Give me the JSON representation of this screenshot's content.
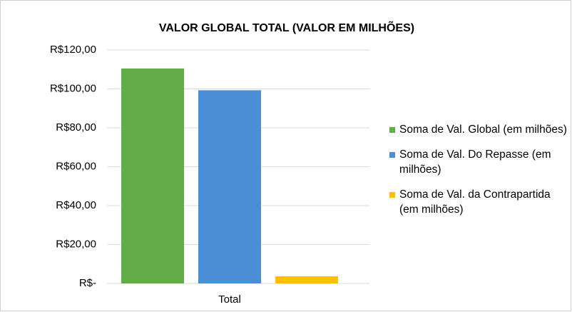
{
  "chart_data": {
    "type": "bar",
    "title": "VALOR GLOBAL TOTAL (VALOR EM MILHÕES)",
    "categories": [
      "Total"
    ],
    "series": [
      {
        "name": "Soma de Val. Global (em milhões)",
        "color": "#62ad48",
        "values": [
          110.5
        ]
      },
      {
        "name": "Soma de Val. Do Repasse (em milhões)",
        "color": "#4a8fd6",
        "values": [
          99.3
        ]
      },
      {
        "name": "Soma de Val. da Contrapartida (em milhões)",
        "color": "#ffc000",
        "values": [
          3.7
        ]
      }
    ],
    "ylim": [
      0,
      120
    ],
    "yticks": [
      {
        "value": 0,
        "label": "R$-"
      },
      {
        "value": 20,
        "label": "R$20,00"
      },
      {
        "value": 40,
        "label": "R$40,00"
      },
      {
        "value": 60,
        "label": "R$60,00"
      },
      {
        "value": 80,
        "label": "R$80,00"
      },
      {
        "value": 100,
        "label": "R$100,00"
      },
      {
        "value": 120,
        "label": "R$120,00"
      }
    ],
    "grid": true,
    "legend": "right"
  }
}
